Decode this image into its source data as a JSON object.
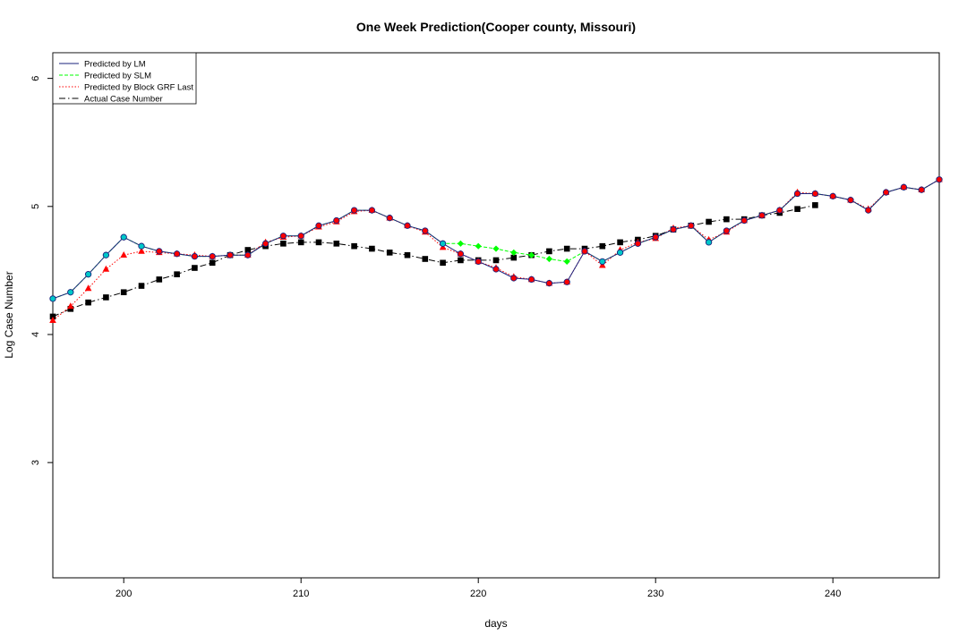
{
  "chart_data": {
    "type": "line",
    "title": "One Week Prediction(Cooper county, Missouri)",
    "xlabel": "days",
    "ylabel": "Log Case Number",
    "xlim": [
      196,
      246
    ],
    "ylim": [
      2.1,
      6.2
    ],
    "xticks": [
      200,
      210,
      220,
      230,
      240
    ],
    "yticks": [
      3,
      4,
      5,
      6
    ],
    "grid": false,
    "legend_position": "top-left",
    "colors": {
      "lm": "#1a237e",
      "slm": "#00ff00",
      "grf": "#ff0000",
      "actual": "#000000",
      "lm_marker": "#00c8c8",
      "grf_marker": "#ff0000",
      "point_overlay": "#ff0000"
    },
    "legend": [
      {
        "key": "lm",
        "label": "Predicted by LM"
      },
      {
        "key": "slm",
        "label": "Predicted by SLM"
      },
      {
        "key": "grf",
        "label": "Predicted by Block GRF Last"
      },
      {
        "key": "actual",
        "label": "Actual Case Number"
      }
    ],
    "series": [
      {
        "name": "Predicted by LM",
        "key": "lm",
        "x": [
          196,
          197,
          198,
          199,
          200,
          201,
          202,
          203,
          204,
          205,
          206,
          207,
          208,
          209,
          210,
          211,
          212,
          213,
          214,
          215,
          216,
          217,
          218,
          219,
          220,
          221,
          222,
          223,
          224,
          225,
          226,
          227,
          228,
          229,
          230,
          231,
          232,
          233,
          234,
          235,
          236,
          237,
          238,
          239,
          240,
          241,
          242,
          243,
          244,
          245,
          246
        ],
        "values": [
          4.28,
          4.33,
          4.47,
          4.62,
          4.76,
          4.69,
          4.65,
          4.63,
          4.61,
          4.61,
          4.62,
          4.62,
          4.71,
          4.77,
          4.77,
          4.85,
          4.89,
          4.97,
          4.97,
          4.91,
          4.85,
          4.81,
          4.71,
          4.63,
          4.57,
          4.51,
          4.44,
          4.43,
          4.4,
          4.41,
          4.65,
          4.57,
          4.64,
          4.71,
          4.76,
          4.82,
          4.85,
          4.72,
          4.81,
          4.89,
          4.93,
          4.97,
          5.1,
          5.1,
          5.08,
          5.05,
          4.97,
          5.11,
          5.15,
          5.13,
          5.21
        ]
      },
      {
        "name": "Predicted by SLM",
        "key": "slm",
        "x": [
          196,
          197,
          198,
          199,
          200,
          201,
          202,
          203,
          204,
          205,
          206,
          207,
          208,
          209,
          210,
          211,
          212,
          213,
          214,
          215,
          216,
          217,
          218,
          219,
          220,
          221,
          222,
          223,
          224,
          225,
          226,
          227,
          228,
          229,
          230,
          231,
          232,
          233,
          234,
          235,
          236,
          237,
          238,
          239,
          240,
          241,
          242,
          243,
          244,
          245,
          246
        ],
        "values": [
          4.28,
          4.33,
          4.47,
          4.62,
          4.76,
          4.69,
          4.65,
          4.63,
          4.61,
          4.61,
          4.62,
          4.62,
          4.71,
          4.77,
          4.77,
          4.85,
          4.89,
          4.97,
          4.97,
          4.91,
          4.85,
          4.81,
          4.71,
          4.71,
          4.69,
          4.67,
          4.64,
          4.62,
          4.59,
          4.57,
          4.65,
          4.57,
          4.64,
          4.71,
          4.76,
          4.82,
          4.85,
          4.72,
          4.81,
          4.89,
          4.93,
          4.97,
          5.1,
          5.1,
          5.08,
          5.05,
          4.97,
          5.11,
          5.15,
          5.13,
          5.21
        ]
      },
      {
        "name": "Predicted by Block GRF Last",
        "key": "grf",
        "x": [
          196,
          197,
          198,
          199,
          200,
          201,
          202,
          203,
          204,
          205,
          206,
          207,
          208,
          209,
          210,
          211,
          212,
          213,
          214,
          215,
          216,
          217,
          218,
          219,
          220,
          221,
          222,
          223,
          224,
          225,
          226,
          227,
          228,
          229,
          230,
          231,
          232,
          233,
          234,
          235,
          236,
          237,
          238,
          239,
          240,
          241,
          242,
          243,
          244,
          245,
          246
        ],
        "values": [
          4.11,
          4.22,
          4.36,
          4.51,
          4.62,
          4.65,
          4.64,
          4.63,
          4.62,
          4.61,
          4.62,
          4.62,
          4.72,
          4.76,
          4.77,
          4.84,
          4.88,
          4.96,
          4.97,
          4.91,
          4.85,
          4.8,
          4.68,
          4.63,
          4.57,
          4.52,
          4.45,
          4.43,
          4.4,
          4.41,
          4.65,
          4.54,
          4.66,
          4.72,
          4.75,
          4.83,
          4.85,
          4.74,
          4.8,
          4.89,
          4.93,
          4.97,
          5.11,
          5.1,
          5.08,
          5.05,
          4.98,
          5.11,
          5.15,
          5.13,
          5.21
        ]
      },
      {
        "name": "Actual Case Number",
        "key": "actual",
        "x": [
          196,
          197,
          198,
          199,
          200,
          201,
          202,
          203,
          204,
          205,
          206,
          207,
          208,
          209,
          210,
          211,
          212,
          213,
          214,
          215,
          216,
          217,
          218,
          219,
          220,
          221,
          222,
          223,
          224,
          225,
          226,
          227,
          228,
          229,
          230,
          231,
          232,
          233,
          234,
          235,
          236,
          237,
          238,
          239
        ],
        "values": [
          4.14,
          4.2,
          4.25,
          4.29,
          4.33,
          4.38,
          4.43,
          4.47,
          4.52,
          4.56,
          4.62,
          4.66,
          4.69,
          4.71,
          4.72,
          4.72,
          4.71,
          4.69,
          4.67,
          4.64,
          4.62,
          4.59,
          4.56,
          4.58,
          4.58,
          4.58,
          4.6,
          4.62,
          4.65,
          4.67,
          4.67,
          4.69,
          4.72,
          4.74,
          4.77,
          4.82,
          4.85,
          4.88,
          4.9,
          4.9,
          4.93,
          4.95,
          4.98,
          5.01
        ]
      }
    ]
  }
}
